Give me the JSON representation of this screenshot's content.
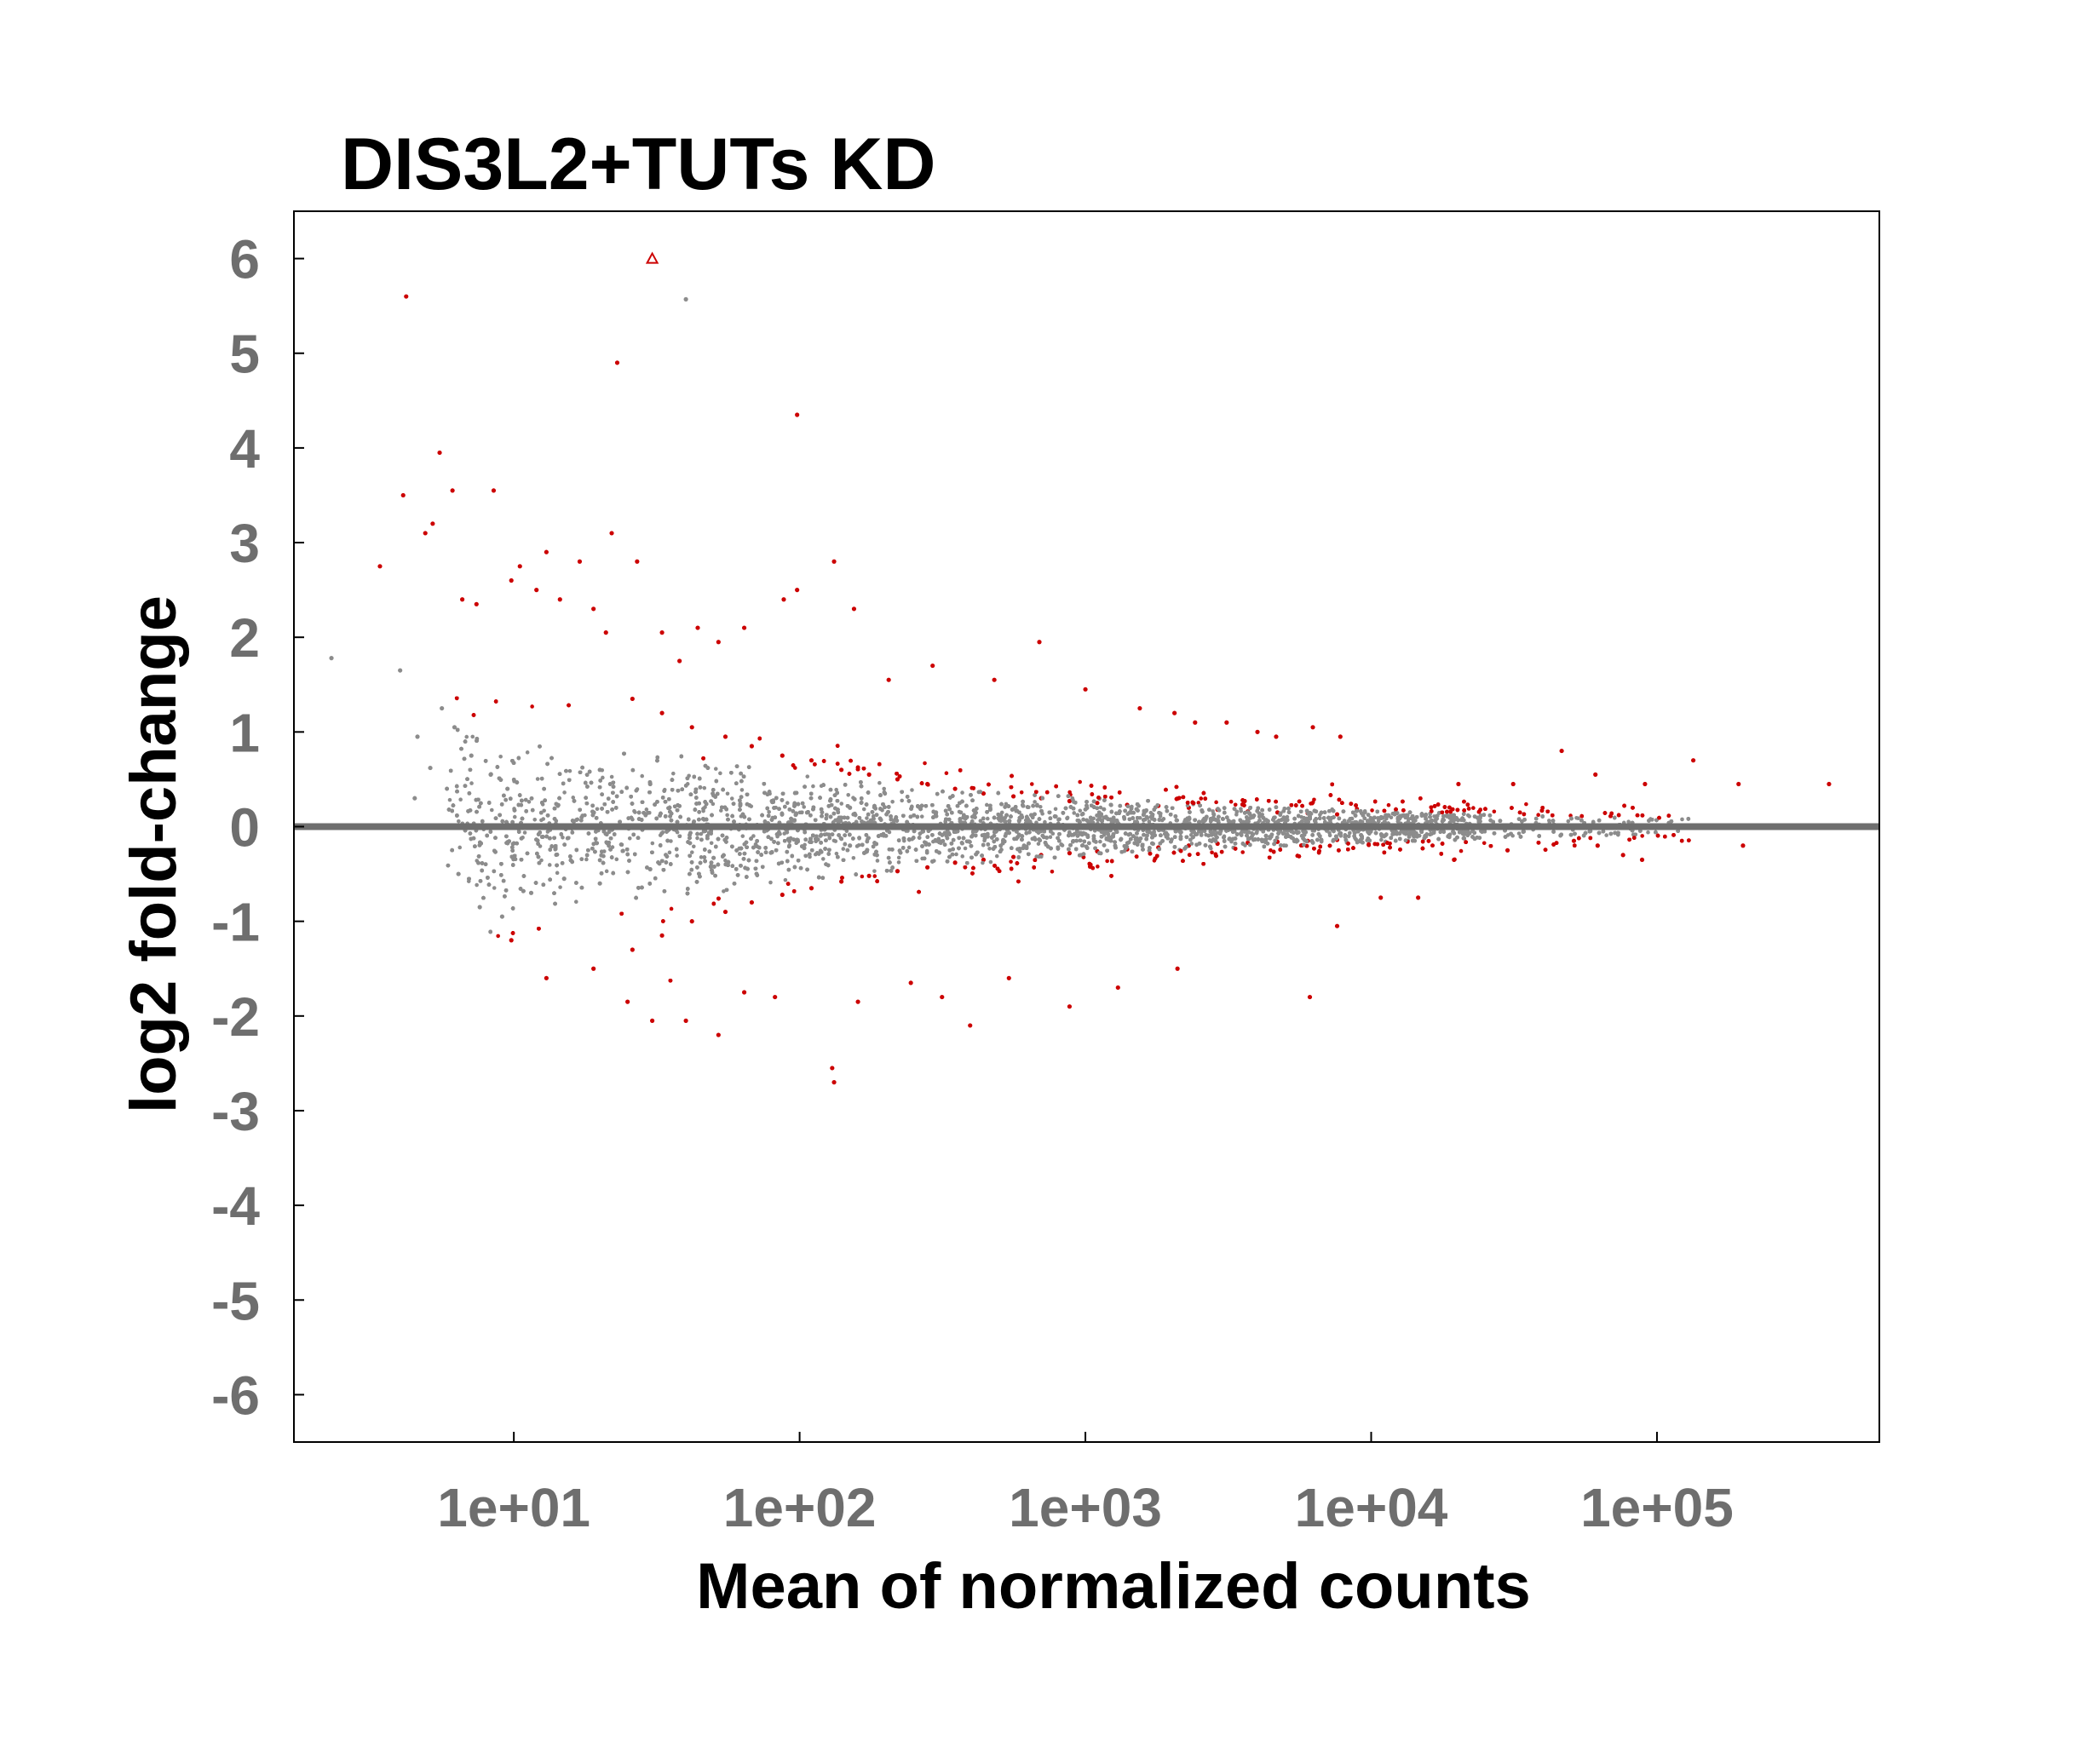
{
  "chart_data": {
    "type": "scatter",
    "title": "DIS3L2+TUTs KD",
    "xlabel": "Mean of normalized counts",
    "ylabel": "log2 fold-change",
    "x_scale": "log10",
    "xlim": [
      1.7,
      600000
    ],
    "ylim": [
      -6.5,
      6.5
    ],
    "x_ticks": [
      10,
      100,
      1000,
      10000,
      100000
    ],
    "x_tick_labels": [
      "1e+01",
      "1e+02",
      "1e+03",
      "1e+04",
      "1e+05"
    ],
    "y_ticks": [
      6,
      5,
      4,
      3,
      2,
      1,
      0,
      -1,
      -2,
      -3,
      -4,
      -5,
      -6
    ],
    "y_tick_labels": [
      "6",
      "5",
      "4",
      "3",
      "2",
      "1",
      "0",
      "-1",
      "-2",
      "-3",
      "-4",
      "-5",
      "-6"
    ],
    "reference_line_y": 0,
    "grid": false,
    "colors": {
      "significant": "#cc0000",
      "not_significant": "#8c8c8c",
      "reference_line": "#6e6e6e"
    },
    "series": [
      {
        "key": "significant",
        "points": [
          [
            30.5,
            6.0
          ],
          [
            4.2,
            5.6
          ],
          [
            23,
            4.9
          ],
          [
            98,
            4.35
          ],
          [
            5.5,
            3.95
          ],
          [
            4.1,
            3.5
          ],
          [
            6.1,
            3.55
          ],
          [
            8.5,
            3.55
          ],
          [
            4.9,
            3.1
          ],
          [
            3.4,
            2.75
          ],
          [
            22,
            3.1
          ],
          [
            27,
            2.8
          ],
          [
            13,
            2.9
          ],
          [
            17,
            2.8
          ],
          [
            132,
            2.8
          ],
          [
            5.2,
            3.2
          ],
          [
            6.6,
            2.4
          ],
          [
            7.4,
            2.35
          ],
          [
            9.8,
            2.6
          ],
          [
            10.5,
            2.75
          ],
          [
            12,
            2.5
          ],
          [
            14.5,
            2.4
          ],
          [
            19,
            2.3
          ],
          [
            21,
            2.05
          ],
          [
            33,
            2.05
          ],
          [
            38,
            1.75
          ],
          [
            44,
            2.1
          ],
          [
            52,
            1.95
          ],
          [
            64,
            2.1
          ],
          [
            88,
            2.4
          ],
          [
            98,
            2.5
          ],
          [
            155,
            2.3
          ],
          [
            205,
            1.55
          ],
          [
            292,
            1.7
          ],
          [
            480,
            1.55
          ],
          [
            690,
            1.95
          ],
          [
            1000,
            1.45
          ],
          [
            1550,
            1.25
          ],
          [
            2050,
            1.2
          ],
          [
            2420,
            1.1
          ],
          [
            3120,
            1.1
          ],
          [
            4000,
            1.0
          ],
          [
            4650,
            0.95
          ],
          [
            6250,
            1.05
          ],
          [
            7800,
            0.95
          ],
          [
            20200,
            0.45
          ],
          [
            31400,
            0.45
          ],
          [
            46400,
            0.8
          ],
          [
            60900,
            0.55
          ],
          [
            90800,
            0.45
          ],
          [
            134000,
            0.7
          ],
          [
            193000,
            0.45
          ],
          [
            400000,
            0.45
          ],
          [
            19500,
            -0.35
          ],
          [
            30000,
            -0.25
          ],
          [
            51200,
            -0.15
          ],
          [
            62000,
            -0.2
          ],
          [
            76100,
            -0.3
          ],
          [
            88700,
            -0.35
          ],
          [
            200000,
            -0.2
          ],
          [
            9.8,
            -1.2
          ],
          [
            13,
            -1.6
          ],
          [
            19,
            -1.5
          ],
          [
            25,
            -1.85
          ],
          [
            30.5,
            -2.05
          ],
          [
            40,
            -2.05
          ],
          [
            52,
            -2.2
          ],
          [
            64,
            -1.75
          ],
          [
            82,
            -1.8
          ],
          [
            130,
            -2.55
          ],
          [
            132,
            -2.7
          ],
          [
            160,
            -1.85
          ],
          [
            245,
            -1.65
          ],
          [
            315,
            -1.8
          ],
          [
            395,
            -2.1
          ],
          [
            540,
            -1.6
          ],
          [
            880,
            -1.9
          ],
          [
            1300,
            -1.7
          ],
          [
            2100,
            -1.5
          ],
          [
            6100,
            -1.8
          ],
          [
            7600,
            -1.05
          ],
          [
            10800,
            -0.75
          ],
          [
            14600,
            -0.75
          ],
          [
            26,
            1.35
          ],
          [
            33,
            1.2
          ],
          [
            42,
            1.05
          ],
          [
            55,
            0.95
          ],
          [
            68,
            0.85
          ],
          [
            87,
            0.75
          ],
          [
            110,
            0.7
          ],
          [
            140,
            0.6
          ],
          [
            175,
            0.55
          ],
          [
            220,
            0.5
          ],
          [
            280,
            0.45
          ],
          [
            350,
            0.4
          ],
          [
            440,
            0.35
          ],
          [
            560,
            0.32
          ],
          [
            700,
            0.3
          ],
          [
            880,
            0.27
          ],
          [
            1100,
            0.25
          ],
          [
            1400,
            0.23
          ],
          [
            1800,
            0.22
          ],
          [
            2300,
            0.2
          ],
          [
            2900,
            0.18
          ],
          [
            3700,
            0.16
          ],
          [
            4700,
            0.15
          ],
          [
            6000,
            0.14
          ],
          [
            7600,
            0.13
          ],
          [
            26,
            -1.3
          ],
          [
            33,
            -1.15
          ],
          [
            42,
            -1.0
          ],
          [
            55,
            -0.9
          ],
          [
            68,
            -0.8
          ],
          [
            87,
            -0.72
          ],
          [
            110,
            -0.65
          ],
          [
            140,
            -0.58
          ],
          [
            175,
            -0.52
          ],
          [
            220,
            -0.47
          ],
          [
            280,
            -0.43
          ],
          [
            350,
            -0.38
          ],
          [
            440,
            -0.35
          ],
          [
            560,
            -0.32
          ],
          [
            700,
            -0.3
          ],
          [
            880,
            -0.28
          ],
          [
            1100,
            -0.26
          ],
          [
            1400,
            -0.24
          ],
          [
            1800,
            -0.22
          ],
          [
            2300,
            -0.2
          ],
          [
            2900,
            -0.18
          ],
          [
            3700,
            -0.17
          ],
          [
            4700,
            -0.16
          ],
          [
            6000,
            -0.15
          ],
          [
            7600,
            -0.14
          ]
        ]
      },
      {
        "key": "not_significant",
        "points": [
          [
            2.3,
            1.78
          ],
          [
            4.0,
            1.65
          ],
          [
            4.6,
            0.95
          ],
          [
            5.1,
            0.62
          ],
          [
            4.5,
            0.3
          ],
          [
            5.6,
            1.25
          ],
          [
            6.2,
            1.05
          ],
          [
            7.1,
            0.75
          ],
          [
            8.3,
            0.55
          ],
          [
            9.5,
            0.4
          ],
          [
            6.4,
            -0.5
          ],
          [
            7.6,
            -0.85
          ],
          [
            9.1,
            -0.95
          ],
          [
            11.5,
            -0.7
          ],
          [
            15,
            -0.55
          ],
          [
            40,
            5.57
          ],
          [
            20,
            0.6
          ],
          [
            30,
            0.45
          ],
          [
            50,
            0.33
          ],
          [
            80,
            0.27
          ],
          [
            150,
            0.2
          ],
          [
            300,
            0.15
          ],
          [
            600,
            0.1
          ],
          [
            1200,
            0.08
          ],
          [
            20,
            -0.6
          ],
          [
            30,
            -0.45
          ],
          [
            50,
            -0.33
          ],
          [
            80,
            -0.27
          ],
          [
            150,
            -0.2
          ],
          [
            300,
            -0.15
          ],
          [
            600,
            -0.1
          ],
          [
            1200,
            -0.08
          ],
          [
            2500,
            0.05
          ],
          [
            5000,
            0.04
          ],
          [
            10000,
            0.03
          ],
          [
            20000,
            0.02
          ],
          [
            40000,
            0.01
          ],
          [
            82000,
            0.04
          ],
          [
            2500,
            -0.05
          ],
          [
            5000,
            -0.04
          ],
          [
            10000,
            -0.03
          ],
          [
            20000,
            -0.02
          ],
          [
            40000,
            -0.01
          ],
          [
            82000,
            -0.04
          ]
        ]
      }
    ]
  }
}
